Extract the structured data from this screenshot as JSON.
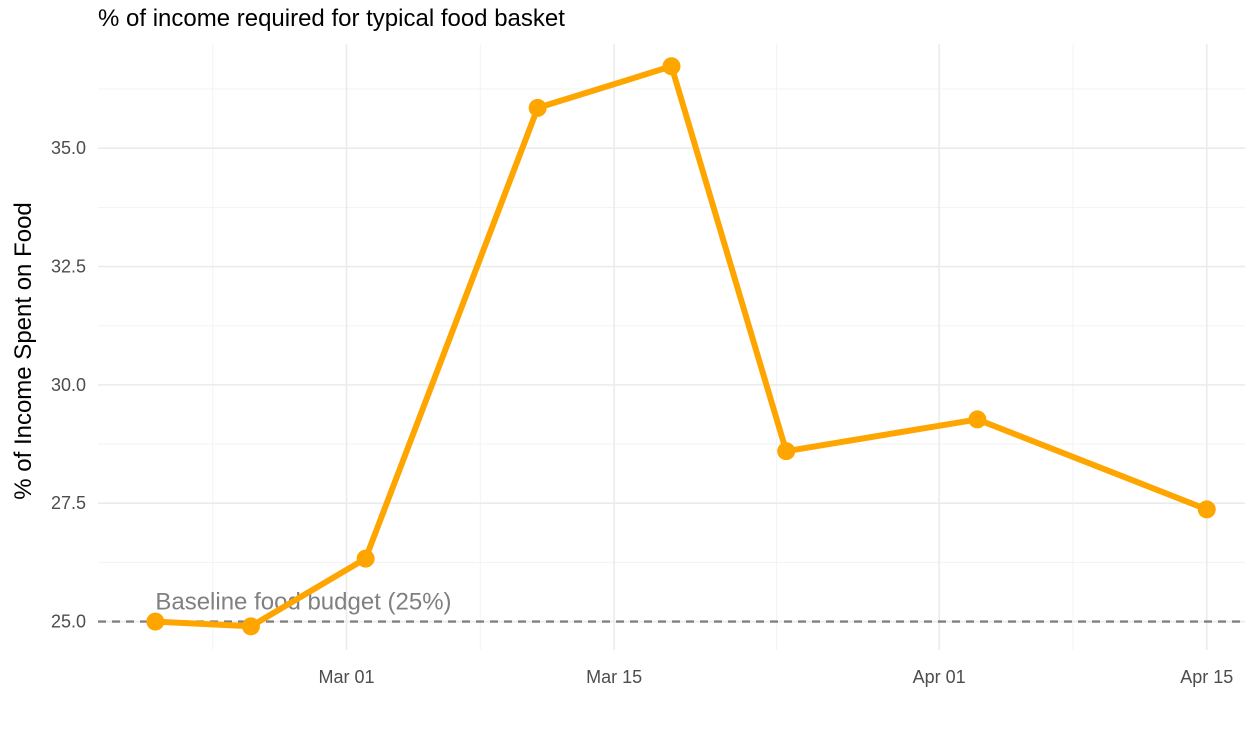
{
  "chart_data": {
    "type": "line",
    "title": "% of income required for typical food basket",
    "xlabel": "",
    "ylabel": "% of Income Spent on Food",
    "x_axis": {
      "type": "date",
      "ticks": [
        "2024-03-01",
        "2024-03-15",
        "2024-04-01",
        "2024-04-15"
      ],
      "tick_labels": [
        "Mar 01",
        "Mar 15",
        "Apr 01",
        "Apr 15"
      ],
      "range": [
        "2024-02-17",
        "2024-04-17"
      ]
    },
    "y_axis": {
      "ticks": [
        25.0,
        27.5,
        30.0,
        32.5,
        35.0
      ],
      "tick_labels": [
        "25.0",
        "27.5",
        "30.0",
        "32.5",
        "35.0"
      ],
      "range": [
        24.4,
        37.2
      ]
    },
    "grid": true,
    "legend": "none",
    "series": [
      {
        "color": "#FFA500",
        "points": [
          {
            "x": "2024-02-20",
            "y": 25.0
          },
          {
            "x": "2024-02-25",
            "y": 24.9
          },
          {
            "x": "2024-03-02",
            "y": 26.33
          },
          {
            "x": "2024-03-11",
            "y": 35.85
          },
          {
            "x": "2024-03-18",
            "y": 36.73
          },
          {
            "x": "2024-03-24",
            "y": 28.6
          },
          {
            "x": "2024-04-03",
            "y": 29.27
          },
          {
            "x": "2024-04-15",
            "y": 27.37
          }
        ]
      }
    ],
    "reference_line": {
      "y": 25.0,
      "style": "dashed",
      "color": "#808080",
      "label": "Baseline food budget (25%)"
    }
  }
}
